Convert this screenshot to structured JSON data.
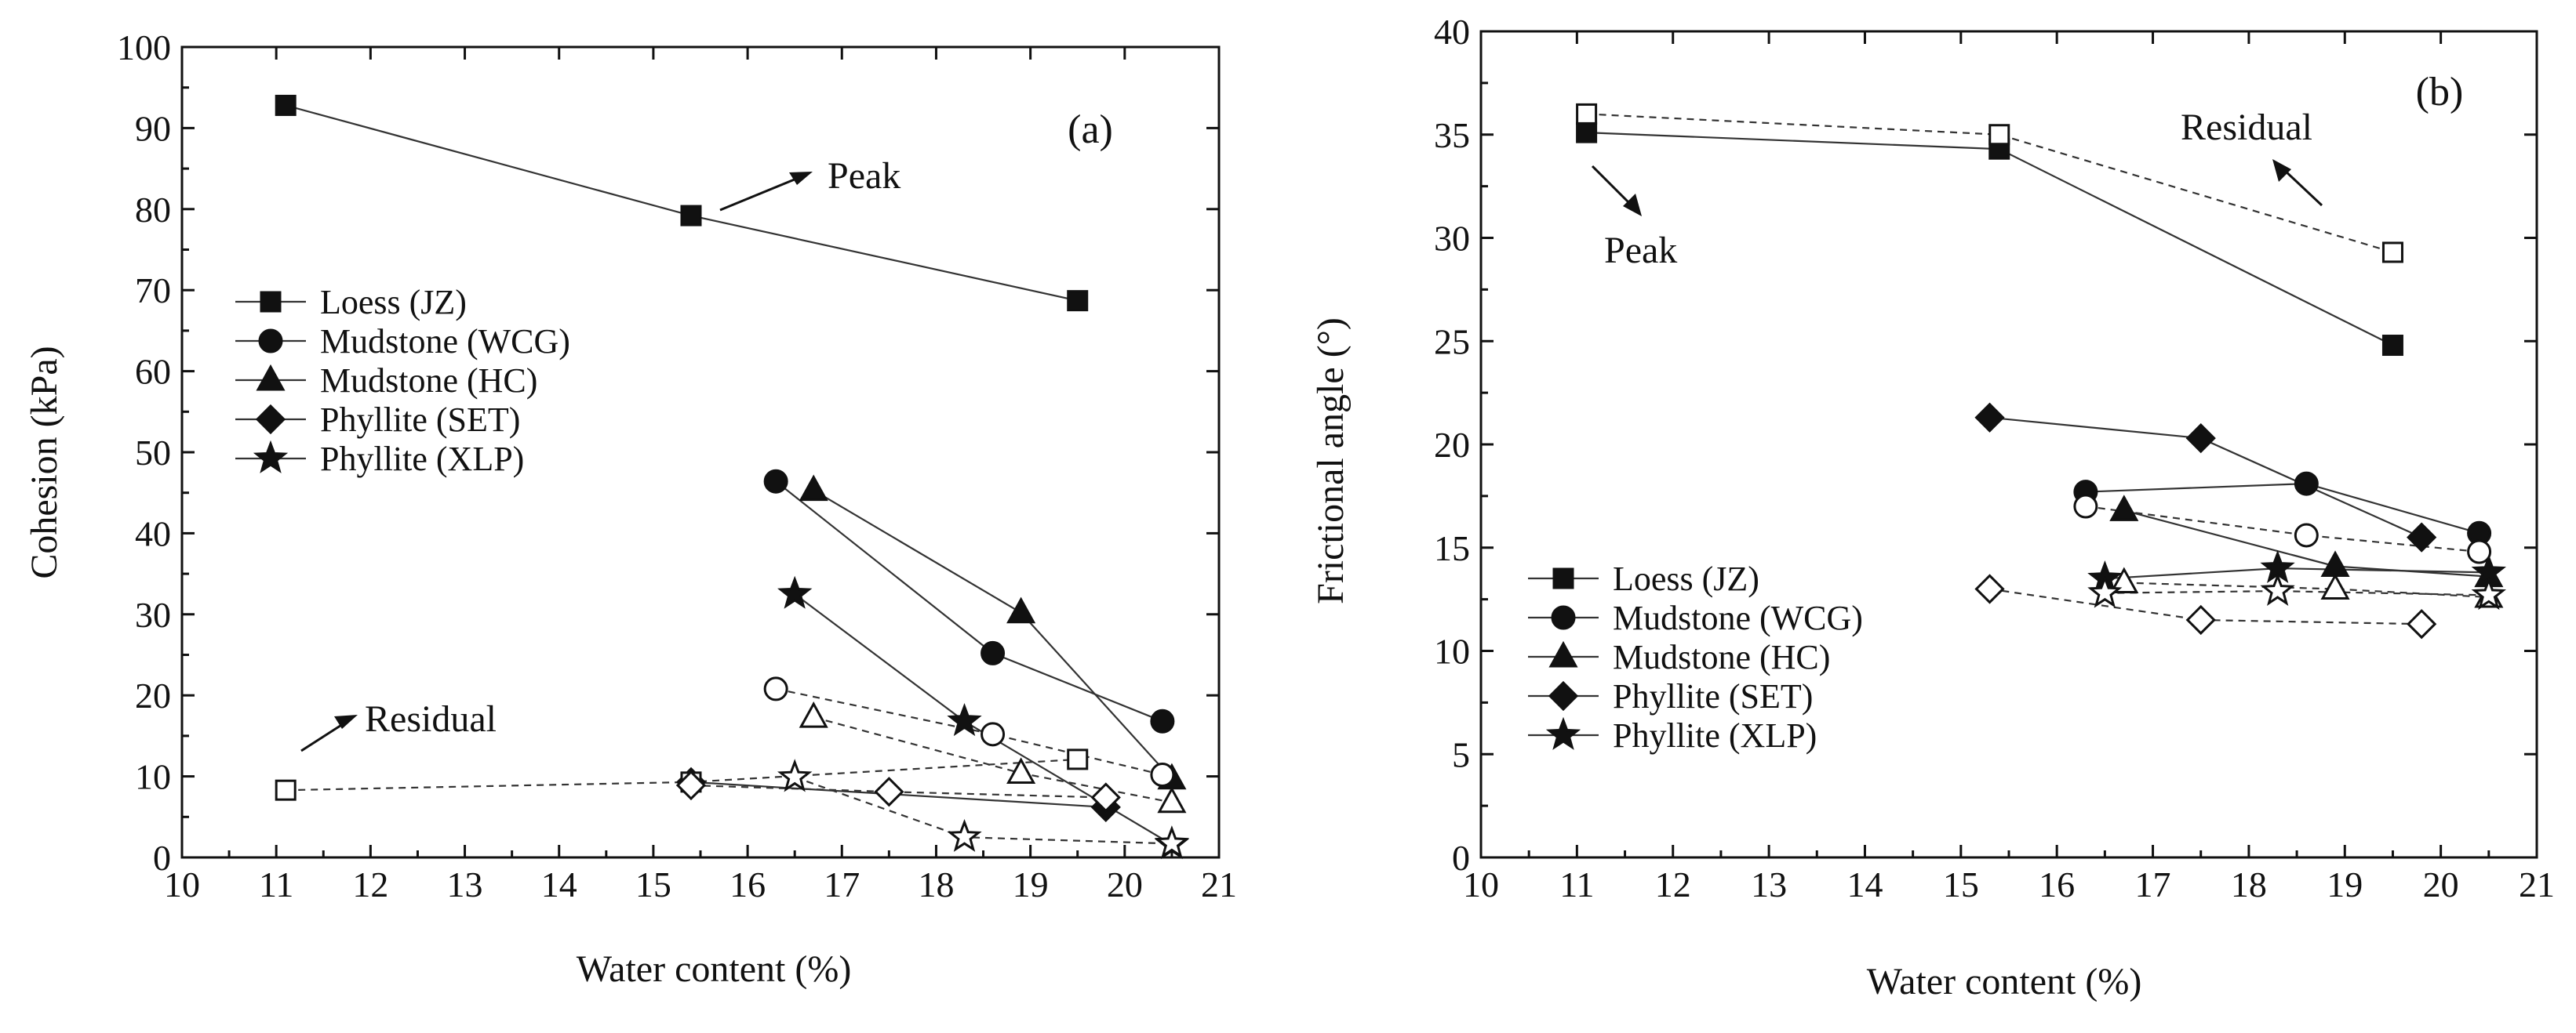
{
  "chart_data": [
    {
      "type": "scatter",
      "panel_label": "(a)",
      "title": "",
      "xlabel": "Water content (%)",
      "ylabel": "Cohesion (kPa)",
      "xlim": [
        10,
        21
      ],
      "ylim": [
        0,
        100
      ],
      "xticks": [
        "10",
        "11",
        "12",
        "13",
        "14",
        "15",
        "16",
        "17",
        "18",
        "19",
        "20",
        "21"
      ],
      "yticks": [
        "0",
        "10",
        "20",
        "30",
        "40",
        "50",
        "60",
        "70",
        "80",
        "90",
        "100"
      ],
      "legend_position": "center-left",
      "legend": [
        "Loess (JZ)",
        "Mudstone (WCG)",
        "Mudstone (HC)",
        "Phyllite (SET)",
        "Phyllite (XLP)"
      ],
      "annotations": [
        "Peak",
        "Residual"
      ],
      "series": [
        {
          "name": "Loess (JZ)",
          "state": "Peak",
          "marker": "square",
          "filled": true,
          "x": [
            11.1,
            15.4,
            19.5
          ],
          "y": [
            92.8,
            79.2,
            68.7
          ]
        },
        {
          "name": "Mudstone (WCG)",
          "state": "Peak",
          "marker": "circle",
          "filled": true,
          "x": [
            16.3,
            18.6,
            20.4
          ],
          "y": [
            46.4,
            25.2,
            16.8
          ]
        },
        {
          "name": "Mudstone (HC)",
          "state": "Peak",
          "marker": "triangle",
          "filled": true,
          "x": [
            16.7,
            18.9,
            20.5
          ],
          "y": [
            45.3,
            30.2,
            9.7
          ]
        },
        {
          "name": "Phyllite (SET)",
          "state": "Peak",
          "marker": "diamond",
          "filled": true,
          "x": [
            15.4,
            19.8
          ],
          "y": [
            9.3,
            6.2
          ]
        },
        {
          "name": "Phyllite (XLP)",
          "state": "Peak",
          "marker": "star",
          "filled": true,
          "x": [
            16.5,
            18.3,
            20.5
          ],
          "y": [
            32.5,
            16.8,
            1.6
          ]
        },
        {
          "name": "Loess (JZ)",
          "state": "Residual",
          "marker": "square",
          "filled": false,
          "x": [
            11.1,
            15.4,
            19.5
          ],
          "y": [
            8.3,
            9.3,
            12.1
          ]
        },
        {
          "name": "Mudstone (WCG)",
          "state": "Residual",
          "marker": "circle",
          "filled": false,
          "x": [
            16.3,
            18.6,
            20.4
          ],
          "y": [
            20.8,
            15.2,
            10.2
          ]
        },
        {
          "name": "Mudstone (HC)",
          "state": "Residual",
          "marker": "triangle",
          "filled": false,
          "x": [
            16.7,
            18.9,
            20.5
          ],
          "y": [
            17.3,
            10.4,
            6.8
          ]
        },
        {
          "name": "Phyllite (SET)",
          "state": "Residual",
          "marker": "diamond",
          "filled": false,
          "x": [
            15.4,
            17.5,
            19.8
          ],
          "y": [
            8.9,
            8.1,
            7.4
          ]
        },
        {
          "name": "Phyllite (XLP)",
          "state": "Residual",
          "marker": "star",
          "filled": false,
          "x": [
            16.5,
            18.3,
            20.5
          ],
          "y": [
            9.9,
            2.5,
            1.7
          ]
        }
      ]
    },
    {
      "type": "scatter",
      "panel_label": "(b)",
      "title": "",
      "xlabel": "Water content (%)",
      "ylabel": "Frictional angle (°)",
      "xlim": [
        10,
        21
      ],
      "ylim": [
        0,
        40
      ],
      "xticks": [
        "10",
        "11",
        "12",
        "13",
        "14",
        "15",
        "16",
        "17",
        "18",
        "19",
        "20",
        "21"
      ],
      "yticks": [
        "0",
        "5",
        "10",
        "15",
        "20",
        "25",
        "30",
        "35",
        "40"
      ],
      "legend_position": "lower-left",
      "legend": [
        "Loess (JZ)",
        "Mudstone (WCG)",
        "Mudstone (HC)",
        "Phyllite (SET)",
        "Phyllite (XLP)"
      ],
      "annotations": [
        "Residual",
        "Peak"
      ],
      "series": [
        {
          "name": "Loess (JZ)",
          "state": "Peak",
          "marker": "square",
          "filled": true,
          "x": [
            11.1,
            15.4,
            19.5
          ],
          "y": [
            35.1,
            34.3,
            24.8
          ]
        },
        {
          "name": "Mudstone (WCG)",
          "state": "Peak",
          "marker": "circle",
          "filled": true,
          "x": [
            16.3,
            18.6,
            20.4
          ],
          "y": [
            17.7,
            18.1,
            15.7
          ]
        },
        {
          "name": "Mudstone (HC)",
          "state": "Peak",
          "marker": "triangle",
          "filled": true,
          "x": [
            16.7,
            18.9,
            20.5
          ],
          "y": [
            16.8,
            14.1,
            13.6
          ]
        },
        {
          "name": "Phyllite (SET)",
          "state": "Peak",
          "marker": "diamond",
          "filled": true,
          "x": [
            15.3,
            17.5,
            19.8
          ],
          "y": [
            21.3,
            20.3,
            15.5
          ]
        },
        {
          "name": "Phyllite (XLP)",
          "state": "Peak",
          "marker": "star",
          "filled": true,
          "x": [
            16.5,
            18.3,
            20.5
          ],
          "y": [
            13.5,
            14.0,
            13.8
          ]
        },
        {
          "name": "Loess (JZ)",
          "state": "Residual",
          "marker": "square",
          "filled": false,
          "x": [
            11.1,
            15.4,
            19.5
          ],
          "y": [
            36.0,
            35.0,
            29.3
          ]
        },
        {
          "name": "Mudstone (WCG)",
          "state": "Residual",
          "marker": "circle",
          "filled": false,
          "x": [
            16.3,
            18.6,
            20.4
          ],
          "y": [
            17.0,
            15.6,
            14.8
          ]
        },
        {
          "name": "Mudstone (HC)",
          "state": "Residual",
          "marker": "triangle",
          "filled": false,
          "x": [
            16.7,
            18.9,
            20.5
          ],
          "y": [
            13.3,
            13.0,
            12.6
          ]
        },
        {
          "name": "Phyllite (SET)",
          "state": "Residual",
          "marker": "diamond",
          "filled": false,
          "x": [
            15.3,
            17.5,
            19.8
          ],
          "y": [
            13.0,
            11.5,
            11.3
          ]
        },
        {
          "name": "Phyllite (XLP)",
          "state": "Residual",
          "marker": "star",
          "filled": false,
          "x": [
            16.5,
            18.3,
            20.5
          ],
          "y": [
            12.8,
            12.9,
            12.7
          ]
        }
      ]
    }
  ]
}
